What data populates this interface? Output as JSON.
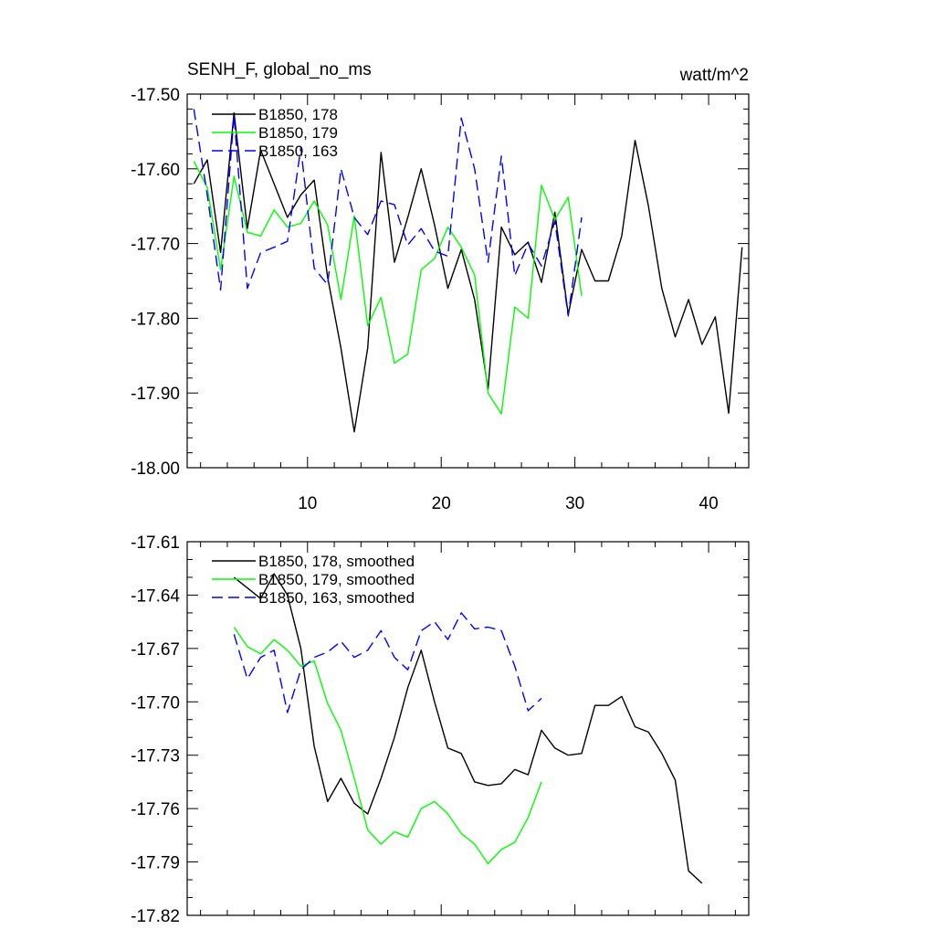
{
  "chart_data": [
    {
      "type": "line",
      "title": "SENH_F, global_no_ms",
      "units": "watt/m^2",
      "xlabel": "",
      "ylabel": "",
      "xlim": [
        1,
        43
      ],
      "ylim": [
        -18.0,
        -17.5
      ],
      "xticks": [
        10,
        20,
        30,
        40
      ],
      "yticks": [
        -17.5,
        -17.6,
        -17.7,
        -17.8,
        -17.9,
        -18.0
      ],
      "ytick_labels": [
        "-17.50",
        "-17.60",
        "-17.70",
        "-17.80",
        "-17.90",
        "-18.00"
      ],
      "xtick_labels": [
        "10",
        "20",
        "30",
        "40"
      ],
      "legend": "top-left",
      "series": [
        {
          "name": "B1850, 178",
          "color": "#000000",
          "dash": "solid",
          "x": [
            1.5,
            2.5,
            3.5,
            4.5,
            5.5,
            6.5,
            7.5,
            8.5,
            9.5,
            10.5,
            11.5,
            12.5,
            13.5,
            14.5,
            15.5,
            16.5,
            17.5,
            18.5,
            19.5,
            20.5,
            21.5,
            22.5,
            23.5,
            24.5,
            25.5,
            26.5,
            27.5,
            28.5,
            29.5,
            30.5,
            31.5,
            32.5,
            33.5,
            34.5,
            35.5,
            36.5,
            37.5,
            38.5,
            39.5,
            40.5,
            41.5,
            42.5
          ],
          "y": [
            -17.62,
            -17.588,
            -17.712,
            -17.525,
            -17.68,
            -17.575,
            -17.62,
            -17.665,
            -17.635,
            -17.615,
            -17.745,
            -17.84,
            -17.952,
            -17.84,
            -17.578,
            -17.725,
            -17.665,
            -17.6,
            -17.675,
            -17.76,
            -17.708,
            -17.775,
            -17.895,
            -17.678,
            -17.715,
            -17.698,
            -17.752,
            -17.658,
            -17.795,
            -17.708,
            -17.75,
            -17.75,
            -17.69,
            -17.562,
            -17.65,
            -17.76,
            -17.825,
            -17.775,
            -17.835,
            -17.798,
            -17.927,
            -17.705
          ]
        },
        {
          "name": "B1850, 179",
          "color": "#00ff00",
          "dash": "solid",
          "x": [
            1.5,
            2.5,
            3.5,
            4.5,
            5.5,
            6.5,
            7.5,
            8.5,
            9.5,
            10.5,
            11.5,
            12.5,
            13.5,
            14.5,
            15.5,
            16.5,
            17.5,
            18.5,
            19.5,
            20.5,
            21.5,
            22.5,
            23.5,
            24.5,
            25.5,
            26.5,
            27.5,
            28.5,
            29.5,
            30.5
          ],
          "y": [
            -17.59,
            -17.625,
            -17.735,
            -17.61,
            -17.685,
            -17.69,
            -17.655,
            -17.678,
            -17.673,
            -17.643,
            -17.675,
            -17.775,
            -17.663,
            -17.81,
            -17.772,
            -17.86,
            -17.848,
            -17.735,
            -17.72,
            -17.678,
            -17.705,
            -17.742,
            -17.9,
            -17.928,
            -17.785,
            -17.8,
            -17.622,
            -17.668,
            -17.638,
            -17.77
          ]
        },
        {
          "name": "B1850, 163",
          "color": "#0000ff",
          "dash": "dashed",
          "x": [
            1.5,
            2.5,
            3.5,
            4.5,
            5.5,
            6.5,
            7.5,
            8.5,
            9.5,
            10.5,
            11.5,
            12.5,
            13.5,
            14.5,
            15.5,
            16.5,
            17.5,
            18.5,
            19.5,
            20.5,
            21.5,
            22.5,
            23.5,
            24.5,
            25.5,
            26.5,
            27.5,
            28.5,
            29.5,
            30.5
          ],
          "y": [
            -17.52,
            -17.635,
            -17.762,
            -17.528,
            -17.76,
            -17.712,
            -17.705,
            -17.697,
            -17.572,
            -17.733,
            -17.755,
            -17.6,
            -17.665,
            -17.688,
            -17.643,
            -17.648,
            -17.702,
            -17.68,
            -17.71,
            -17.717,
            -17.532,
            -17.6,
            -17.725,
            -17.583,
            -17.743,
            -17.7,
            -17.73,
            -17.67,
            -17.797,
            -17.665
          ]
        }
      ]
    },
    {
      "type": "line",
      "title": "",
      "xlabel": "",
      "ylabel": "",
      "xlim": [
        1,
        43
      ],
      "ylim": [
        -17.82,
        -17.61
      ],
      "xticks": [
        10,
        20,
        30,
        40
      ],
      "yticks": [
        -17.61,
        -17.64,
        -17.67,
        -17.7,
        -17.73,
        -17.76,
        -17.79,
        -17.82
      ],
      "ytick_labels": [
        "-17.61",
        "-17.64",
        "-17.67",
        "-17.70",
        "-17.73",
        "-17.76",
        "-17.79",
        "-17.82"
      ],
      "legend": "top-left",
      "series": [
        {
          "name": "B1850, 178, smoothed",
          "color": "#000000",
          "dash": "solid",
          "x": [
            4.5,
            5.5,
            6.5,
            7.5,
            8.5,
            9.5,
            10.5,
            11.5,
            12.5,
            13.5,
            14.5,
            15.5,
            16.5,
            17.5,
            18.5,
            19.5,
            20.5,
            21.5,
            22.5,
            23.5,
            24.5,
            25.5,
            26.5,
            27.5,
            28.5,
            29.5,
            30.5,
            31.5,
            32.5,
            33.5,
            34.5,
            35.5,
            36.5,
            37.5,
            38.5,
            39.5
          ],
          "y": [
            -17.63,
            -17.636,
            -17.642,
            -17.628,
            -17.64,
            -17.67,
            -17.725,
            -17.756,
            -17.743,
            -17.757,
            -17.763,
            -17.743,
            -17.72,
            -17.692,
            -17.671,
            -17.7,
            -17.726,
            -17.729,
            -17.745,
            -17.747,
            -17.746,
            -17.738,
            -17.741,
            -17.716,
            -17.726,
            -17.73,
            -17.729,
            -17.702,
            -17.702,
            -17.697,
            -17.714,
            -17.717,
            -17.729,
            -17.744,
            -17.795,
            -17.802
          ]
        },
        {
          "name": "B1850, 179, smoothed",
          "color": "#00ff00",
          "dash": "solid",
          "x": [
            4.5,
            5.5,
            6.5,
            7.5,
            8.5,
            9.5,
            10.5,
            11.5,
            12.5,
            13.5,
            14.5,
            15.5,
            16.5,
            17.5,
            18.5,
            19.5,
            20.5,
            21.5,
            22.5,
            23.5,
            24.5,
            25.5,
            26.5,
            27.5
          ],
          "y": [
            -17.658,
            -17.669,
            -17.673,
            -17.665,
            -17.671,
            -17.68,
            -17.677,
            -17.701,
            -17.716,
            -17.743,
            -17.772,
            -17.78,
            -17.773,
            -17.776,
            -17.76,
            -17.756,
            -17.763,
            -17.774,
            -17.78,
            -17.791,
            -17.783,
            -17.779,
            -17.765,
            -17.745
          ]
        },
        {
          "name": "B1850, 163, smoothed",
          "color": "#0000ff",
          "dash": "dashed",
          "x": [
            4.5,
            5.5,
            6.5,
            7.5,
            8.5,
            9.5,
            10.5,
            11.5,
            12.5,
            13.5,
            14.5,
            15.5,
            16.5,
            17.5,
            18.5,
            19.5,
            20.5,
            21.5,
            22.5,
            23.5,
            24.5,
            25.5,
            26.5,
            27.5
          ],
          "y": [
            -17.662,
            -17.687,
            -17.675,
            -17.671,
            -17.706,
            -17.682,
            -17.675,
            -17.672,
            -17.666,
            -17.675,
            -17.671,
            -17.66,
            -17.675,
            -17.682,
            -17.66,
            -17.655,
            -17.665,
            -17.65,
            -17.659,
            -17.658,
            -17.66,
            -17.68,
            -17.705,
            -17.698
          ]
        }
      ]
    }
  ]
}
